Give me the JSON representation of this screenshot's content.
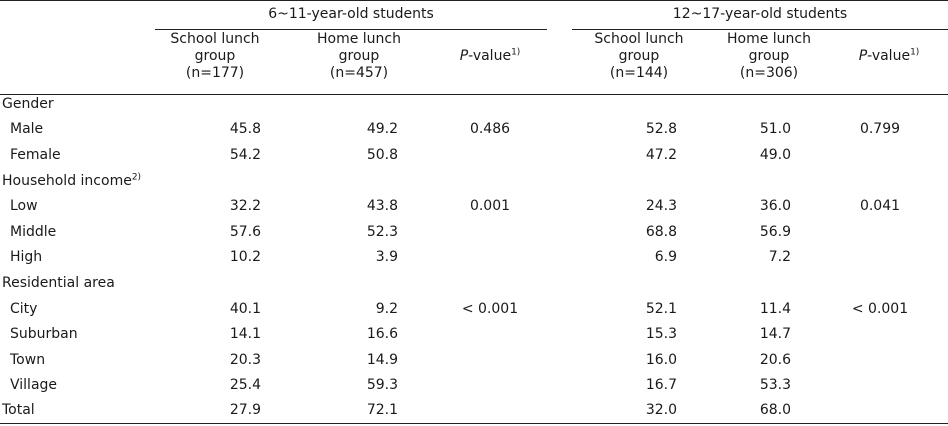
{
  "header": {
    "groups": [
      "6~11-year-old students",
      "12~17-year-old students"
    ],
    "col_school": [
      "School lunch",
      "group"
    ],
    "col_home": [
      "Home lunch",
      "group"
    ],
    "n_values": [
      "(n=177)",
      "(n=457)",
      "(n=144)",
      "(n=306)"
    ],
    "pvalue_italic": "P",
    "pvalue_rest": "-value",
    "pvalue_note": "1)"
  },
  "sections": [
    {
      "label": "Gender",
      "note": ""
    },
    {
      "label": "Household income",
      "note": "2)"
    },
    {
      "label": "Residential area",
      "note": ""
    }
  ],
  "rows": [
    {
      "label": "Male",
      "v": [
        "45.8",
        "49.2",
        "0.486",
        "52.8",
        "51.0",
        "0.799"
      ]
    },
    {
      "label": "Female",
      "v": [
        "54.2",
        "50.8",
        "",
        "47.2",
        "49.0",
        ""
      ]
    },
    {
      "label": "Low",
      "v": [
        "32.2",
        "43.8",
        "0.001",
        "24.3",
        "36.0",
        "0.041"
      ]
    },
    {
      "label": "Middle",
      "v": [
        "57.6",
        "52.3",
        "",
        "68.8",
        "56.9",
        ""
      ]
    },
    {
      "label": "High",
      "v": [
        "10.2",
        "3.9",
        "",
        "6.9",
        "7.2",
        ""
      ]
    },
    {
      "label": "City",
      "v": [
        "40.1",
        "9.2",
        "< 0.001",
        "52.1",
        "11.4",
        "< 0.001"
      ]
    },
    {
      "label": "Suburban",
      "v": [
        "14.1",
        "16.6",
        "",
        "15.3",
        "14.7",
        ""
      ]
    },
    {
      "label": "Town",
      "v": [
        "20.3",
        "14.9",
        "",
        "16.0",
        "20.6",
        ""
      ]
    },
    {
      "label": "Village",
      "v": [
        "25.4",
        "59.3",
        "",
        "16.7",
        "53.3",
        ""
      ]
    },
    {
      "label": "Total",
      "v": [
        "27.9",
        "72.1",
        "",
        "32.0",
        "68.0",
        ""
      ]
    }
  ]
}
